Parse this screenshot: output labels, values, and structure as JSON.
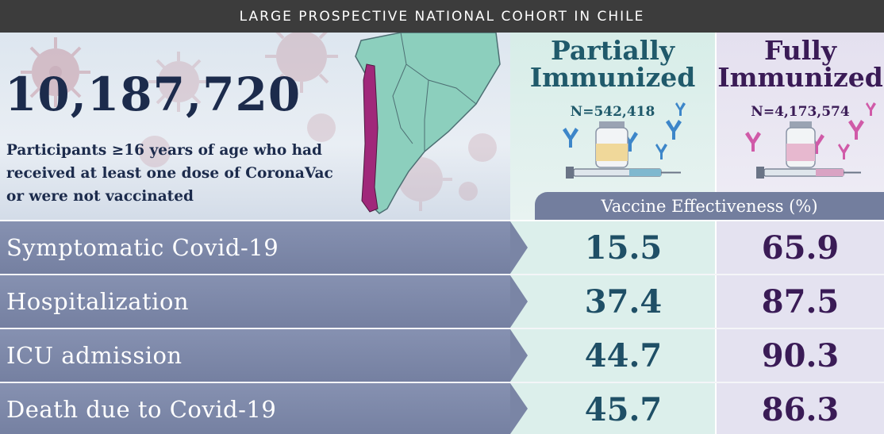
{
  "header": {
    "banner": "LARGE PROSPECTIVE NATIONAL COHORT IN CHILE"
  },
  "hero": {
    "participants_count": "10,187,720",
    "description": "Participants ≥16 years of age who had received at least one dose of CoronaVac or were not vaccinated"
  },
  "columns": [
    {
      "title": "Partially Immunized",
      "n": "N=542,418",
      "accent": "#205a6b"
    },
    {
      "title": "Fully Immunized",
      "n": "N=4,173,574",
      "accent": "#3a1b56"
    }
  ],
  "metric_label": "Vaccine Effectiveness (%)",
  "rows": [
    {
      "outcome": "Symptomatic Covid-19",
      "partial": "15.5",
      "full": "65.9"
    },
    {
      "outcome": "Hospitalization",
      "partial": "37.4",
      "full": "87.5"
    },
    {
      "outcome": "ICU admission",
      "partial": "44.7",
      "full": "90.3"
    },
    {
      "outcome": "Death due to Covid-19",
      "partial": "45.7",
      "full": "86.3"
    }
  ],
  "colors": {
    "chile": "#a0287a",
    "continent": "#8ccfbd",
    "virus": "#c79aa6",
    "label_band": "#7a85a5"
  },
  "icons": [
    "virus-icon",
    "south-america-map",
    "vaccine-vial-icon",
    "syringe-icon",
    "antibody-icon"
  ]
}
